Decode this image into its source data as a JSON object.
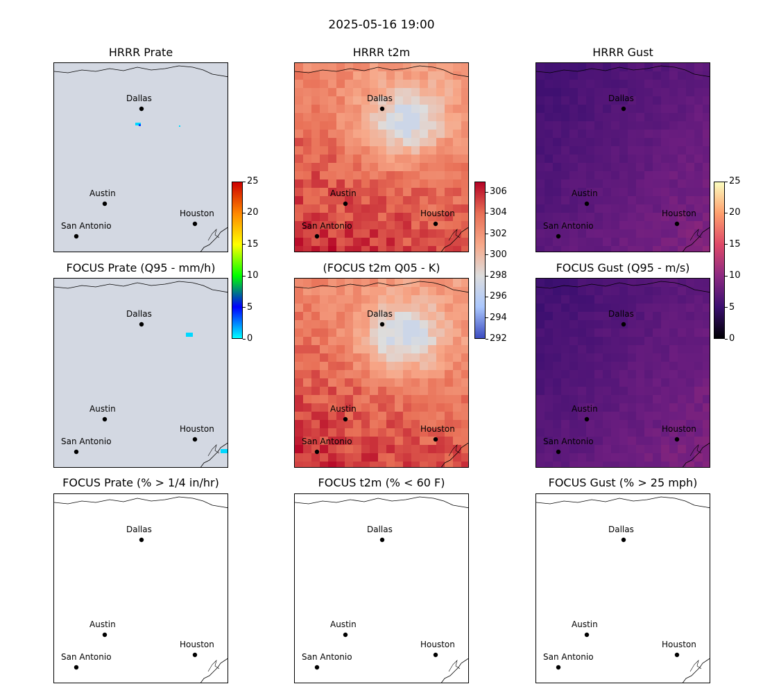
{
  "figure": {
    "suptitle": "2025-05-16 19:00"
  },
  "cities": [
    {
      "name": "Dallas"
    },
    {
      "name": "Austin"
    },
    {
      "name": "Houston"
    },
    {
      "name": "San Antonio"
    }
  ],
  "panels": [
    {
      "title": "HRRR Prate",
      "field": "prate"
    },
    {
      "title": "HRRR t2m",
      "field": "t2m"
    },
    {
      "title": "HRRR Gust",
      "field": "gust"
    },
    {
      "title": "FOCUS Prate (Q95 - mm/h)",
      "field": "prate"
    },
    {
      "title": "(FOCUS t2m Q05 - K)",
      "field": "t2m"
    },
    {
      "title": "FOCUS Gust (Q95 - m/s)",
      "field": "gust"
    },
    {
      "title": "FOCUS Prate (% > 1/4 in/hr)",
      "field": "blank"
    },
    {
      "title": "FOCUS t2m (% < 60 F)",
      "field": "blank"
    },
    {
      "title": "FOCUS Gust (% > 25 mph)",
      "field": "blank"
    }
  ],
  "colorbars": [
    {
      "name": "prate-colorbar",
      "ticks": [
        "0",
        "5",
        "10",
        "15",
        "20",
        "25"
      ],
      "range": [
        0,
        25
      ],
      "colormap": "nipy_spectral-like",
      "colors": [
        "#00ffff",
        "#0000ff",
        "#00ff00",
        "#ffff00",
        "#ff8800",
        "#cc0000"
      ]
    },
    {
      "name": "t2m-colorbar",
      "ticks": [
        "292",
        "294",
        "296",
        "298",
        "300",
        "302",
        "304",
        "306"
      ],
      "range": [
        292,
        307
      ],
      "colormap": "coolwarm",
      "colors": [
        "#3b4cc0",
        "#aac7fd",
        "#dddddd",
        "#f7a889",
        "#e86f56",
        "#b40426"
      ]
    },
    {
      "name": "gust-colorbar",
      "ticks": [
        "0",
        "5",
        "10",
        "15",
        "20",
        "25"
      ],
      "range": [
        0,
        25
      ],
      "colormap": "magma",
      "colors": [
        "#000004",
        "#3b0f70",
        "#8c2981",
        "#de4968",
        "#fe9f6d",
        "#fcfdbf"
      ]
    }
  ],
  "chart_data": [
    {
      "type": "heatmap",
      "title": "HRRR Prate",
      "colorbar_range": [
        0,
        25
      ],
      "background": "#d3d8e2"
    },
    {
      "type": "heatmap",
      "title": "HRRR t2m",
      "colorbar_range": [
        292,
        307
      ]
    },
    {
      "type": "heatmap",
      "title": "HRRR Gust",
      "colorbar_range": [
        0,
        25
      ]
    },
    {
      "type": "heatmap",
      "title": "FOCUS Prate (Q95 - mm/h)",
      "colorbar_range": [
        0,
        25
      ]
    },
    {
      "type": "heatmap",
      "title": "(FOCUS t2m Q05 - K)",
      "colorbar_range": [
        292,
        307
      ]
    },
    {
      "type": "heatmap",
      "title": "FOCUS Gust (Q95 - m/s)",
      "colorbar_range": [
        0,
        25
      ]
    },
    {
      "type": "heatmap",
      "title": "FOCUS Prate (% > 1/4 in/hr)"
    },
    {
      "type": "heatmap",
      "title": "FOCUS t2m (% < 60 F)"
    },
    {
      "type": "heatmap",
      "title": "FOCUS Gust (% > 25 mph)"
    }
  ]
}
